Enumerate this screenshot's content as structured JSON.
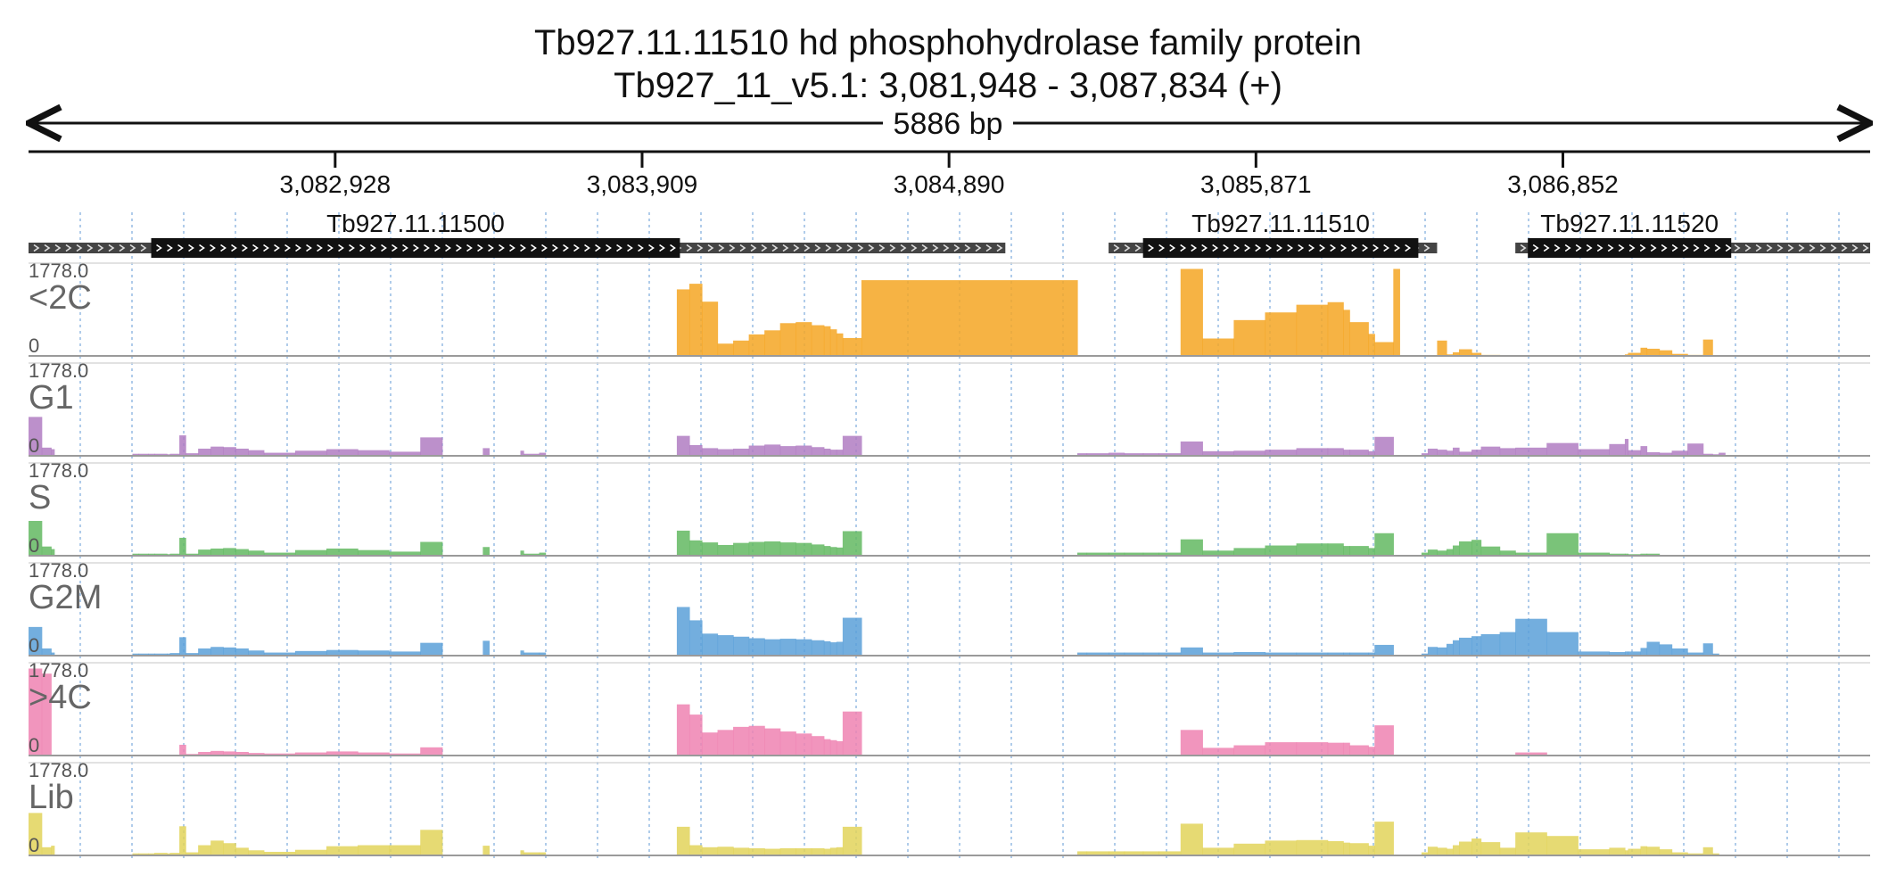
{
  "header": {
    "title_line_1": "Tb927.11.11510  hd phosphohydrolase family protein",
    "title_line_2": "Tb927_11_v5.1: 3,081,948 - 3,087,834 (+)"
  },
  "chart_data": {
    "type": "area",
    "region": {
      "chromosome": "Tb927_11_v5.1",
      "start": 3081948,
      "end": 3087834,
      "strand": "+"
    },
    "span_label": "5886 bp",
    "x_ticks": [
      {
        "value": 3082928,
        "label": "3,082,928"
      },
      {
        "value": 3083909,
        "label": "3,083,909"
      },
      {
        "value": 3084890,
        "label": "3,084,890"
      },
      {
        "value": 3085871,
        "label": "3,085,871"
      },
      {
        "value": 3086852,
        "label": "3,086,852"
      }
    ],
    "genes": [
      {
        "name": "Tb927.11.11500",
        "start": 3081948,
        "end": 3085070,
        "cds_start": 3082340,
        "cds_end": 3084030
      },
      {
        "name": "Tb927.11.11510",
        "start": 3085400,
        "end": 3086450,
        "cds_start": 3085510,
        "cds_end": 3086390
      },
      {
        "name": "Tb927.11.11520",
        "start": 3086700,
        "end": 3087834,
        "cds_start": 3086740,
        "cds_end": 3087390
      }
    ],
    "ylim": [
      0,
      1778.0
    ],
    "y_max_label": "1778.0",
    "y_min_label": "0",
    "x_breakpoints": [
      3081948,
      3081990,
      3082020,
      3082030,
      3082060,
      3082090,
      3082200,
      3082230,
      3082280,
      3082300,
      3082330,
      3082350,
      3082390,
      3082400,
      3082430,
      3082450,
      3082490,
      3082530,
      3082570,
      3082610,
      3082650,
      3082700,
      3082800,
      3082900,
      3083000,
      3083100,
      3083200,
      3083270,
      3083350,
      3083400,
      3083420,
      3083460,
      3083520,
      3083530,
      3083580,
      3083600,
      3083700,
      3083800,
      3083880,
      3084010,
      3084020,
      3084060,
      3084100,
      3084150,
      3084200,
      3084250,
      3084300,
      3084350,
      3084400,
      3084450,
      3084490,
      3084510,
      3084530,
      3084550,
      3084610,
      3085300,
      3085330,
      3085400,
      3085450,
      3085510,
      3085560,
      3085630,
      3085700,
      3085800,
      3085900,
      3086000,
      3086100,
      3086150,
      3086170,
      3086230,
      3086250,
      3086310,
      3086330,
      3086400,
      3086420,
      3086450,
      3086480,
      3086500,
      3086520,
      3086560,
      3086590,
      3086650,
      3086700,
      3086800,
      3086900,
      3087000,
      3087050,
      3087060,
      3087100,
      3087120,
      3087160,
      3087200,
      3087250,
      3087300,
      3087330,
      3087350,
      3087370,
      3087450,
      3087500,
      3087580,
      3087600,
      3087650,
      3087834
    ],
    "series": [
      {
        "name": "<2C",
        "color": "#f5a623",
        "values": [
          0,
          0,
          0,
          0,
          0,
          0,
          0,
          0,
          0,
          0,
          0,
          0,
          0,
          0,
          0,
          0,
          0,
          0,
          0,
          0,
          0,
          0,
          0,
          0,
          0,
          0,
          0,
          0,
          0,
          0,
          0,
          0,
          0,
          0,
          0,
          0,
          0,
          0,
          0,
          0,
          1300,
          1410,
          1060,
          240,
          300,
          420,
          500,
          640,
          660,
          600,
          580,
          520,
          440,
          350,
          1480,
          0,
          0,
          0,
          0,
          0,
          0,
          1700,
          340,
          700,
          850,
          1000,
          1050,
          900,
          660,
          430,
          270,
          1700,
          0,
          0,
          0,
          300,
          30,
          70,
          130,
          60,
          20,
          10,
          0,
          0,
          0,
          0,
          30,
          60,
          160,
          140,
          110,
          40,
          20,
          320,
          0,
          0,
          0,
          0,
          0,
          0,
          0,
          0
        ]
      },
      {
        "name": "G1",
        "color": "#b07cc2",
        "values": [
          760,
          160,
          130,
          0,
          0,
          0,
          0,
          0,
          40,
          40,
          40,
          40,
          30,
          40,
          400,
          50,
          140,
          180,
          170,
          140,
          110,
          60,
          100,
          130,
          110,
          80,
          360,
          0,
          0,
          150,
          0,
          0,
          100,
          40,
          60,
          0,
          0,
          0,
          0,
          0,
          390,
          210,
          150,
          130,
          140,
          200,
          220,
          190,
          200,
          170,
          140,
          120,
          120,
          390,
          0,
          50,
          50,
          60,
          50,
          50,
          50,
          280,
          90,
          100,
          120,
          150,
          150,
          120,
          120,
          90,
          370,
          0,
          0,
          50,
          140,
          120,
          100,
          160,
          80,
          120,
          180,
          150,
          160,
          250,
          130,
          230,
          330,
          110,
          190,
          70,
          60,
          100,
          240,
          40,
          30,
          60,
          0,
          0,
          0,
          0,
          0,
          0
        ]
      },
      {
        "name": "S",
        "color": "#63b862",
        "values": [
          680,
          180,
          130,
          0,
          0,
          0,
          0,
          0,
          40,
          40,
          40,
          40,
          30,
          40,
          350,
          40,
          120,
          140,
          150,
          130,
          100,
          60,
          110,
          140,
          110,
          80,
          270,
          0,
          0,
          170,
          0,
          0,
          100,
          40,
          60,
          0,
          0,
          0,
          0,
          0,
          490,
          300,
          260,
          210,
          250,
          270,
          280,
          260,
          250,
          220,
          190,
          170,
          160,
          480,
          0,
          60,
          60,
          60,
          60,
          60,
          60,
          320,
          100,
          150,
          200,
          240,
          240,
          190,
          190,
          150,
          440,
          0,
          0,
          60,
          120,
          100,
          130,
          200,
          280,
          310,
          180,
          100,
          60,
          440,
          60,
          40,
          40,
          30,
          40,
          40,
          0,
          0,
          0,
          0,
          0,
          0,
          0,
          0,
          0,
          0,
          0,
          0
        ]
      },
      {
        "name": "G2M",
        "color": "#5aa0d8",
        "values": [
          560,
          140,
          60,
          0,
          0,
          0,
          0,
          0,
          40,
          40,
          40,
          40,
          40,
          50,
          360,
          50,
          140,
          170,
          160,
          140,
          100,
          60,
          90,
          110,
          100,
          80,
          250,
          0,
          0,
          290,
          0,
          0,
          100,
          60,
          60,
          0,
          0,
          0,
          0,
          0,
          950,
          690,
          430,
          400,
          370,
          340,
          320,
          330,
          320,
          300,
          280,
          260,
          270,
          740,
          0,
          60,
          60,
          60,
          60,
          60,
          60,
          160,
          60,
          70,
          60,
          60,
          60,
          60,
          60,
          60,
          210,
          0,
          0,
          40,
          170,
          160,
          230,
          300,
          350,
          380,
          420,
          460,
          720,
          460,
          80,
          70,
          80,
          80,
          150,
          270,
          220,
          140,
          60,
          240,
          40,
          0,
          0,
          0,
          0,
          0,
          0,
          0
        ]
      },
      {
        "name": ">4C",
        "color": "#ee82b2",
        "values": [
          1700,
          1600,
          0,
          0,
          0,
          0,
          0,
          0,
          0,
          0,
          0,
          0,
          0,
          0,
          210,
          30,
          70,
          90,
          80,
          70,
          50,
          40,
          60,
          80,
          60,
          40,
          160,
          0,
          0,
          0,
          0,
          0,
          0,
          0,
          0,
          0,
          0,
          0,
          0,
          0,
          1000,
          800,
          450,
          500,
          560,
          580,
          530,
          470,
          430,
          380,
          320,
          300,
          280,
          860,
          0,
          0,
          0,
          0,
          0,
          0,
          0,
          500,
          150,
          200,
          260,
          260,
          250,
          250,
          200,
          170,
          590,
          0,
          0,
          0,
          0,
          0,
          0,
          0,
          0,
          0,
          0,
          0,
          60,
          0,
          0,
          0,
          0,
          0,
          0,
          0,
          0,
          0,
          0,
          0,
          0,
          0,
          0,
          0,
          0,
          0,
          0,
          0
        ]
      },
      {
        "name": "Lib",
        "color": "#e2d45a",
        "values": [
          830,
          160,
          190,
          0,
          0,
          0,
          0,
          0,
          40,
          40,
          40,
          50,
          40,
          50,
          570,
          60,
          200,
          290,
          240,
          150,
          100,
          70,
          110,
          180,
          200,
          200,
          500,
          0,
          0,
          190,
          0,
          0,
          100,
          60,
          60,
          0,
          0,
          0,
          0,
          0,
          560,
          200,
          160,
          170,
          150,
          140,
          130,
          140,
          140,
          140,
          130,
          150,
          160,
          560,
          0,
          80,
          80,
          80,
          80,
          80,
          80,
          620,
          150,
          230,
          290,
          300,
          280,
          250,
          240,
          190,
          660,
          0,
          0,
          60,
          170,
          150,
          130,
          200,
          270,
          330,
          260,
          150,
          450,
          380,
          120,
          150,
          100,
          130,
          180,
          170,
          120,
          60,
          40,
          160,
          40,
          0,
          0,
          0,
          0,
          0,
          0,
          0
        ]
      }
    ]
  }
}
